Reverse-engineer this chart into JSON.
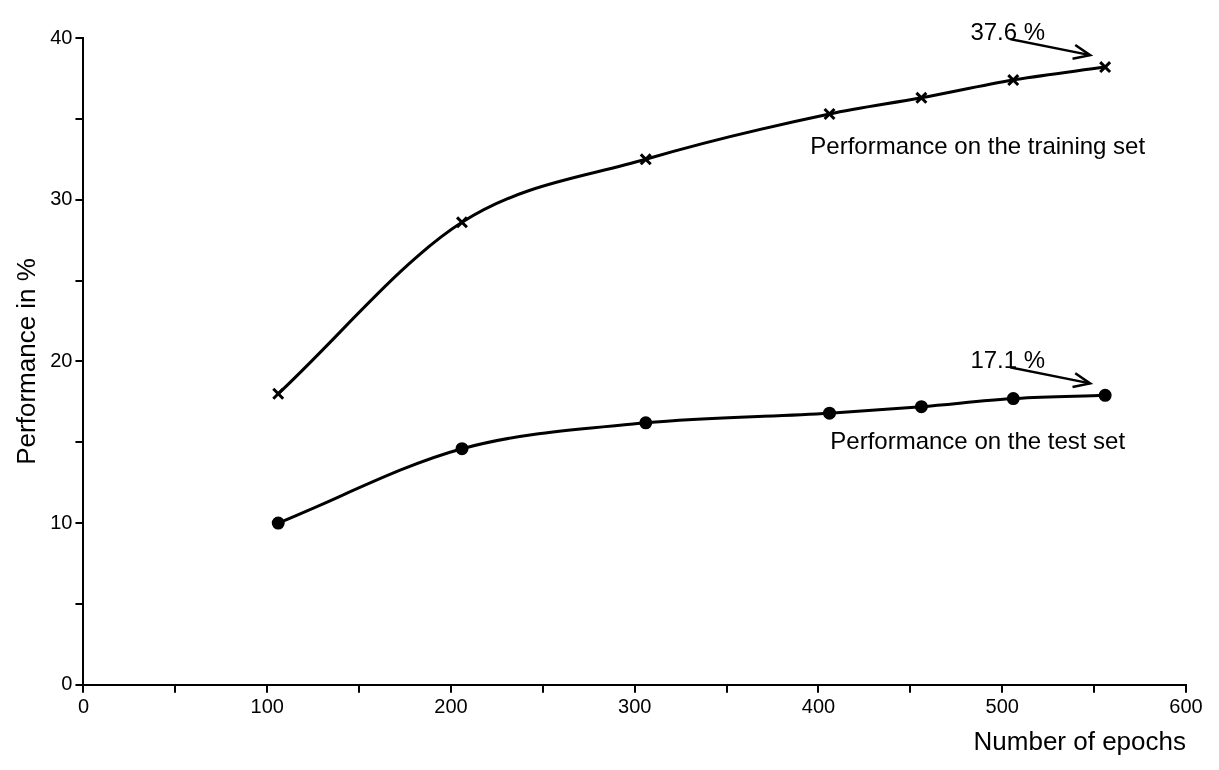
{
  "chart_data": {
    "type": "line",
    "xlabel": "Number of epochs",
    "ylabel": "Performance in %",
    "xlim": [
      0,
      600
    ],
    "ylim": [
      0,
      40
    ],
    "xticks": [
      0,
      {
        "value": 50,
        "label": null
      },
      100,
      {
        "value": 150,
        "label": null
      },
      200,
      {
        "value": 250,
        "label": null
      },
      300,
      {
        "value": 350,
        "label": null
      },
      400,
      {
        "value": 450,
        "label": null
      },
      500,
      {
        "value": 550,
        "label": null
      },
      600
    ],
    "yticks": [
      0,
      {
        "value": 5,
        "label": null
      },
      10,
      {
        "value": 15,
        "label": null
      },
      20,
      {
        "value": 25,
        "label": null
      },
      30,
      {
        "value": 35,
        "label": null
      },
      40
    ],
    "grid": false,
    "legend": false,
    "line_style": "solid",
    "series": [
      {
        "name": "Performance on the training set",
        "color": "#000000",
        "marker": "cross",
        "x": [
          106,
          206,
          306,
          406,
          456,
          506,
          556
        ],
        "values": [
          18.0,
          28.6,
          32.5,
          35.3,
          36.3,
          37.4,
          38.2
        ]
      },
      {
        "name": "Performance on the test set",
        "color": "#000000",
        "marker": "circle",
        "x": [
          106,
          206,
          306,
          406,
          456,
          506,
          556
        ],
        "values": [
          10.0,
          14.6,
          16.2,
          16.8,
          17.2,
          17.7,
          17.9
        ]
      }
    ],
    "annotations": [
      {
        "text": "37.6 %",
        "x": 556,
        "y": 38.2
      },
      {
        "text": "17.1 %",
        "x": 556,
        "y": 17.9
      }
    ]
  }
}
